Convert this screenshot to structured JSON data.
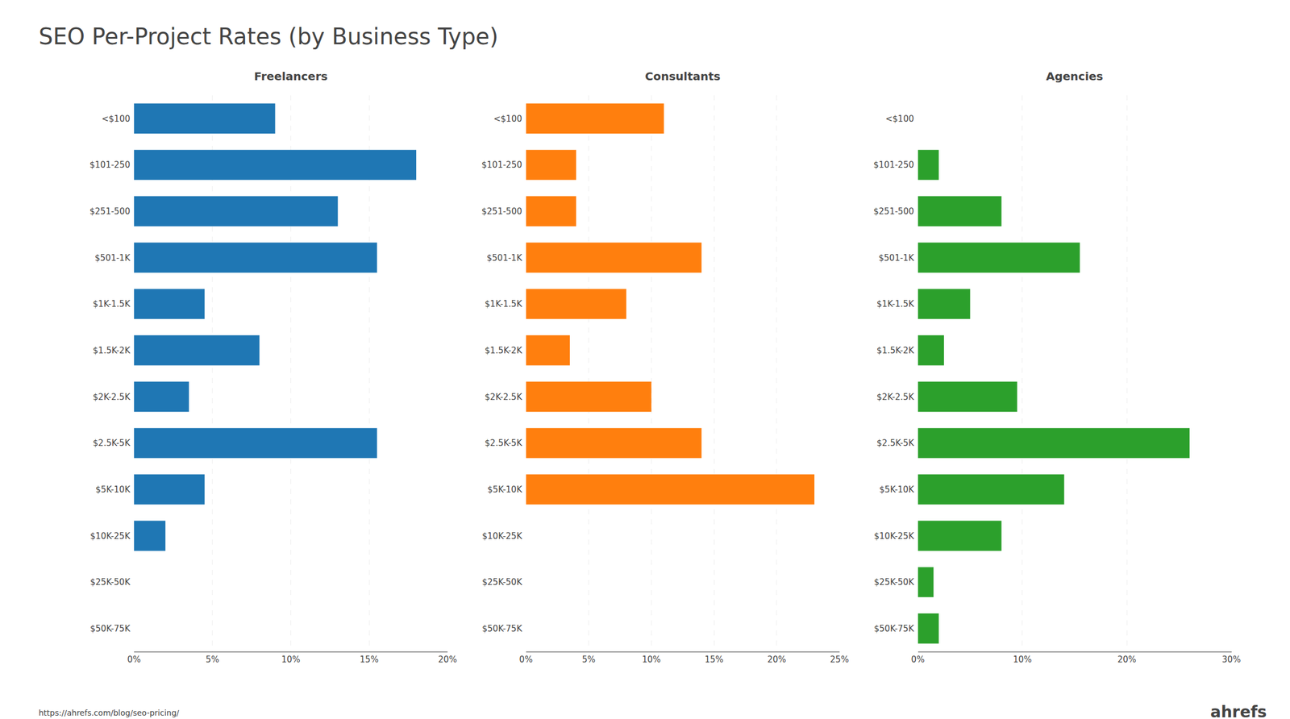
{
  "title": "SEO Per-Project Rates (by Business Type)",
  "annotations": [
    "https://ahrefs.com/blog/seo-pricing/",
    "ahrefs"
  ],
  "chart_data": [
    {
      "type": "bar",
      "orientation": "horizontal",
      "title": "Freelancers",
      "categories": [
        "<$100",
        "$101-250",
        "$251-500",
        "$501-1K",
        "$1K-1.5K",
        "$1.5K-2K",
        "$2K-2.5K",
        "$2.5K-5K",
        "$5K-10K",
        "$10K-25K",
        "$25K-50K",
        "$50K-75K"
      ],
      "values": [
        9.0,
        18.0,
        13.0,
        15.5,
        4.5,
        8.0,
        3.5,
        15.5,
        4.5,
        2.0,
        0.0,
        0.0
      ],
      "xlim": [
        0,
        20
      ],
      "xticks": [
        {
          "value": 0,
          "label": "0%"
        },
        {
          "value": 5,
          "label": "5%"
        },
        {
          "value": 10,
          "label": "10%"
        },
        {
          "value": 15,
          "label": "15%"
        },
        {
          "value": 20,
          "label": "20%"
        }
      ],
      "grid": true
    },
    {
      "type": "bar",
      "orientation": "horizontal",
      "title": "Consultants",
      "categories": [
        "<$100",
        "$101-250",
        "$251-500",
        "$501-1K",
        "$1K-1.5K",
        "$1.5K-2K",
        "$2K-2.5K",
        "$2.5K-5K",
        "$5K-10K",
        "$10K-25K",
        "$25K-50K",
        "$50K-75K"
      ],
      "values": [
        11.0,
        4.0,
        4.0,
        14.0,
        8.0,
        3.5,
        10.0,
        14.0,
        23.0,
        0.0,
        0.0,
        0.0
      ],
      "xlim": [
        0,
        25
      ],
      "xticks": [
        {
          "value": 0,
          "label": "0%"
        },
        {
          "value": 5,
          "label": "5%"
        },
        {
          "value": 10,
          "label": "10%"
        },
        {
          "value": 15,
          "label": "15%"
        },
        {
          "value": 20,
          "label": "20%"
        },
        {
          "value": 25,
          "label": "25%"
        }
      ],
      "grid": true
    },
    {
      "type": "bar",
      "orientation": "horizontal",
      "title": "Agencies",
      "categories": [
        "<$100",
        "$101-250",
        "$251-500",
        "$501-1K",
        "$1K-1.5K",
        "$1.5K-2K",
        "$2K-2.5K",
        "$2.5K-5K",
        "$5K-10K",
        "$10K-25K",
        "$25K-50K",
        "$50K-75K"
      ],
      "values": [
        0.0,
        2.0,
        8.0,
        15.5,
        5.0,
        2.5,
        9.5,
        26.0,
        14.0,
        8.0,
        1.5,
        2.0
      ],
      "xlim": [
        0,
        30
      ],
      "xticks": [
        {
          "value": 0,
          "label": "0%"
        },
        {
          "value": 10,
          "label": "10%"
        },
        {
          "value": 20,
          "label": "20%"
        },
        {
          "value": 30,
          "label": "30%"
        }
      ],
      "grid": true
    }
  ]
}
